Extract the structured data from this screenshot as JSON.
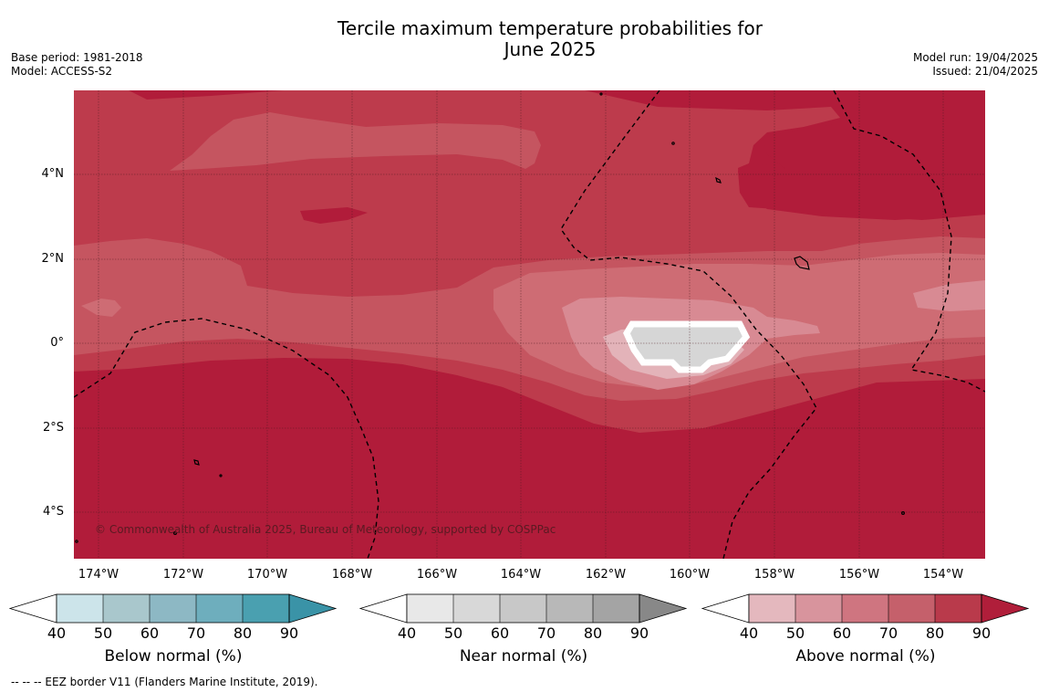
{
  "title_line1": "Tercile maximum temperature probabilities for",
  "title_line2": "June 2025",
  "base_period": "Base period: 1981-2018",
  "model": "Model: ACCESS-S2",
  "model_run": "Model run: 19/04/2025",
  "issued": "Issued: 21/04/2025",
  "copyright": "© Commonwealth of Australia 2025, Bureau of Meteorology, supported by COSPPac",
  "footnote": "--  --  -- EEZ border V11 (Flanders Marine Institute, 2019).",
  "lat_labels": [
    "4°N",
    "2°N",
    "0°",
    "2°S",
    "4°S"
  ],
  "lon_labels": [
    "174°W",
    "172°W",
    "170°W",
    "168°W",
    "166°W",
    "164°W",
    "162°W",
    "160°W",
    "158°W",
    "156°W",
    "154°W"
  ],
  "colorbars": [
    {
      "title": "Below normal (%)",
      "ticks": [
        "40",
        "50",
        "60",
        "70",
        "80",
        "90"
      ],
      "colors": [
        "#cce4ea",
        "#a9c7cc",
        "#8db8c4",
        "#6eaebd",
        "#4aa0b0",
        "#3a93a7"
      ]
    },
    {
      "title": "Near normal (%)",
      "ticks": [
        "40",
        "50",
        "60",
        "70",
        "80",
        "90"
      ],
      "colors": [
        "#e8e8e8",
        "#d8d8d8",
        "#c8c8c8",
        "#b8b8b8",
        "#a4a4a4",
        "#888888"
      ]
    },
    {
      "title": "Above normal (%)",
      "ticks": [
        "40",
        "50",
        "60",
        "70",
        "80",
        "90"
      ],
      "colors": [
        "#e4b8be",
        "#d8949d",
        "#cf7580",
        "#c5606b",
        "#b93a4b",
        "#b01e3a"
      ]
    }
  ],
  "map_colors": {
    "above_90": "#b11c3a",
    "above_80": "#bd3b4c",
    "above_70": "#c55560",
    "above_60": "#ce6c74",
    "above_50": "#d88a93",
    "above_40": "#e3b3b9",
    "near_50": "#d6d6d6"
  }
}
